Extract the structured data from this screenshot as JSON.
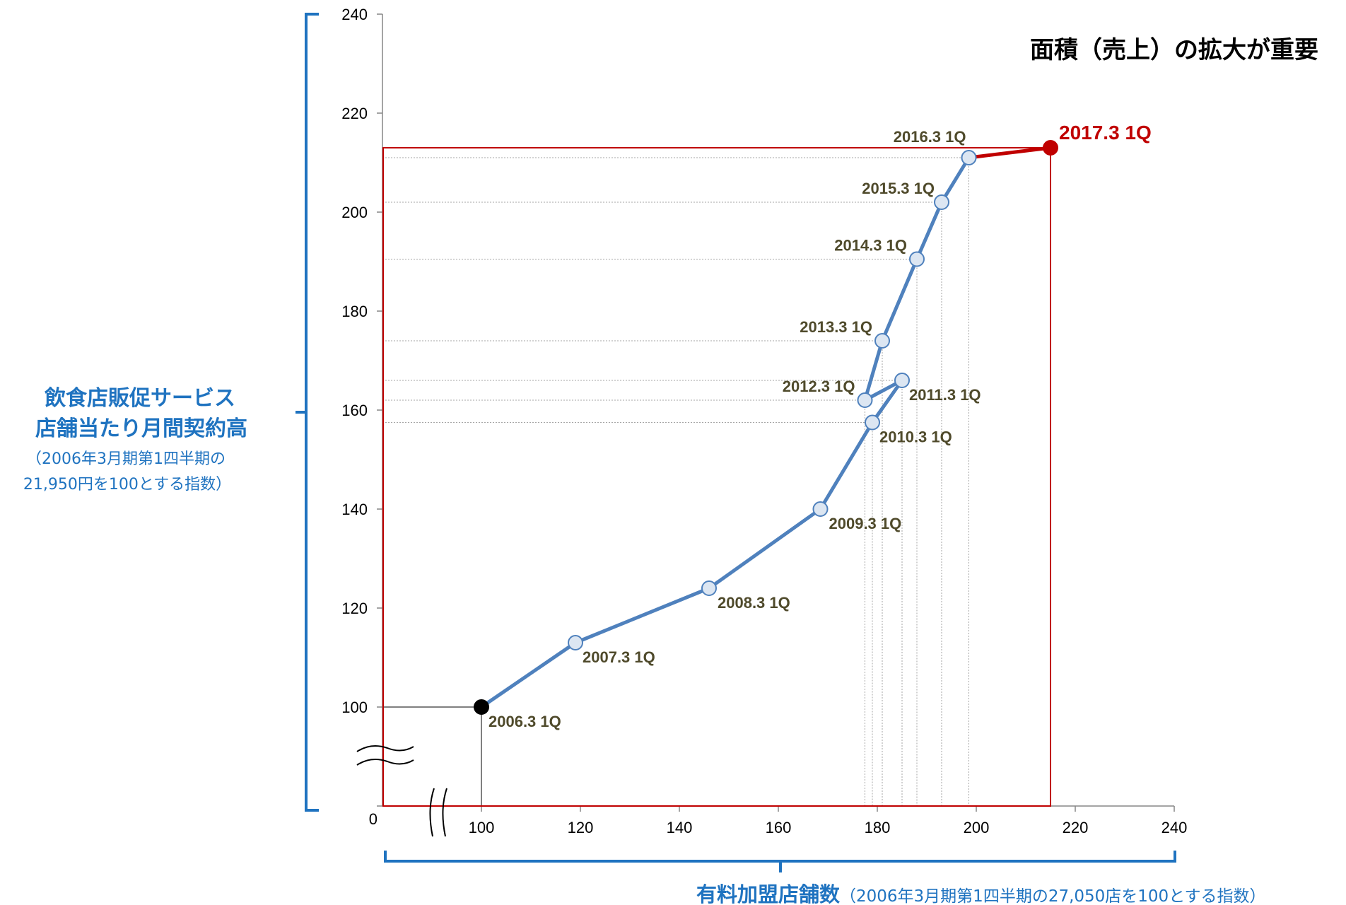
{
  "chart_data": {
    "type": "line",
    "title": "面積（売上）の拡大が重要",
    "ylabel": [
      "飲食店販促サービス",
      "店舗当たり月間契約高"
    ],
    "ylabel_note": [
      "（2006年3月期第1四半期の",
      "21,950円を100とする指数）"
    ],
    "xlabel": "有料加盟店舗数",
    "xlabel_note": "（2006年3月期第1四半期の27,050店を100とする指数）",
    "xlim": [
      80,
      240
    ],
    "ylim": [
      80,
      240
    ],
    "x_ticks": [
      "0",
      "100",
      "120",
      "140",
      "160",
      "180",
      "200",
      "220",
      "240"
    ],
    "y_ticks": [
      "0",
      "100",
      "120",
      "140",
      "160",
      "180",
      "200",
      "220",
      "240"
    ],
    "axis_breaks": true,
    "series": [
      {
        "points": [
          {
            "label": "2006.3 1Q",
            "x": 100,
            "y": 100
          },
          {
            "label": "2007.3 1Q",
            "x": 119,
            "y": 113
          },
          {
            "label": "2008.3 1Q",
            "x": 146,
            "y": 124
          },
          {
            "label": "2009.3 1Q",
            "x": 168.5,
            "y": 140
          },
          {
            "label": "2010.3 1Q",
            "x": 179,
            "y": 157.5
          },
          {
            "label": "2011.3 1Q",
            "x": 185,
            "y": 166
          },
          {
            "label": "2012.3 1Q",
            "x": 177.5,
            "y": 162
          },
          {
            "label": "2013.3 1Q",
            "x": 181,
            "y": 174
          },
          {
            "label": "2014.3 1Q",
            "x": 188,
            "y": 190.5
          },
          {
            "label": "2015.3 1Q",
            "x": 193,
            "y": 202
          },
          {
            "label": "2016.3 1Q",
            "x": 198.5,
            "y": 211
          },
          {
            "label": "2017.3 1Q",
            "x": 215,
            "y": 213
          }
        ]
      }
    ],
    "colors": {
      "line": "#4f81bd",
      "marker_fill": "#dce6f2",
      "highlight": "#c00000",
      "start_point": "#000000",
      "axis_label": "#1f73c0",
      "point_label": "#4f4a2b"
    }
  }
}
